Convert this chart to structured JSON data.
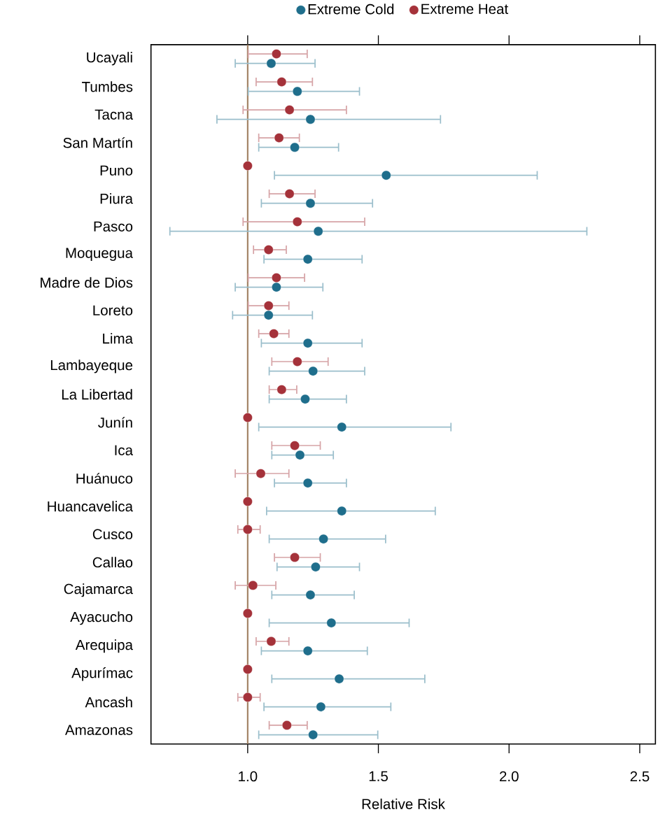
{
  "chart_data": {
    "type": "scatter",
    "orientation": "horizontal",
    "xlabel": "Relative Risk",
    "marker": "circle",
    "legend": "top",
    "categories": [
      "Ucayali",
      "Tumbes",
      "Tacna",
      "San Martín",
      "Puno",
      "Piura",
      "Pasco",
      "Moquegua",
      "Madre de Dios",
      "Loreto",
      "Lima",
      "Lambayeque",
      "La Libertad",
      "Junín",
      "Ica",
      "Huánuco",
      "Huancavelica",
      "Cusco",
      "Callao",
      "Cajamarca",
      "Ayacucho",
      "Arequipa",
      "Apurímac",
      "Ancash",
      "Amazonas"
    ],
    "xlim": [
      0.63,
      2.56
    ],
    "xticks": [
      {
        "value": 1,
        "label": "1.0"
      },
      {
        "value": 1.5,
        "label": "1.5"
      },
      {
        "value": 2,
        "label": "2.0"
      },
      {
        "value": 2.5,
        "label": "2.5"
      }
    ],
    "ref_lines": [
      {
        "axis": "x",
        "value": 1,
        "color": "#a08062"
      }
    ],
    "series": [
      {
        "name": "Extreme Cold",
        "color": "#1f6e8c",
        "values": [
          1.09,
          1.19,
          1.24,
          1.18,
          1.53,
          1.24,
          1.27,
          1.23,
          1.11,
          1.08,
          1.23,
          1.25,
          1.22,
          1.36,
          1.2,
          1.23,
          1.36,
          1.29,
          1.26,
          1.24,
          1.32,
          1.23,
          1.35,
          1.28,
          1.25
        ],
        "errors": [
          [
            0.95,
            1.26
          ],
          [
            1.0,
            1.43
          ],
          [
            0.88,
            1.74
          ],
          [
            1.04,
            1.35
          ],
          [
            1.1,
            2.11
          ],
          [
            1.05,
            1.48
          ],
          [
            0.7,
            2.3
          ],
          [
            1.06,
            1.44
          ],
          [
            0.95,
            1.29
          ],
          [
            0.94,
            1.25
          ],
          [
            1.05,
            1.44
          ],
          [
            1.08,
            1.45
          ],
          [
            1.08,
            1.38
          ],
          [
            1.04,
            1.78
          ],
          [
            1.09,
            1.33
          ],
          [
            1.1,
            1.38
          ],
          [
            1.07,
            1.72
          ],
          [
            1.08,
            1.53
          ],
          [
            1.11,
            1.43
          ],
          [
            1.09,
            1.41
          ],
          [
            1.08,
            1.62
          ],
          [
            1.05,
            1.46
          ],
          [
            1.09,
            1.68
          ],
          [
            1.06,
            1.55
          ],
          [
            1.04,
            1.5
          ]
        ]
      },
      {
        "name": "Extreme Heat",
        "color": "#a5323a",
        "values": [
          1.11,
          1.13,
          1.16,
          1.12,
          1.0,
          1.16,
          1.19,
          1.08,
          1.11,
          1.08,
          1.1,
          1.19,
          1.13,
          1.0,
          1.18,
          1.05,
          1.0,
          1.0,
          1.18,
          1.02,
          1.0,
          1.09,
          1.0,
          1.0,
          1.15
        ],
        "errors": [
          [
            1.0,
            1.23
          ],
          [
            1.03,
            1.25
          ],
          [
            0.98,
            1.38
          ],
          [
            1.04,
            1.2
          ],
          null,
          [
            1.08,
            1.26
          ],
          [
            0.98,
            1.45
          ],
          [
            1.02,
            1.15
          ],
          [
            1.0,
            1.22
          ],
          [
            1.0,
            1.16
          ],
          [
            1.04,
            1.16
          ],
          [
            1.09,
            1.31
          ],
          [
            1.08,
            1.19
          ],
          null,
          [
            1.09,
            1.28
          ],
          [
            0.95,
            1.16
          ],
          null,
          [
            0.96,
            1.05
          ],
          [
            1.1,
            1.28
          ],
          [
            0.95,
            1.11
          ],
          null,
          [
            1.03,
            1.16
          ],
          null,
          [
            0.96,
            1.05
          ],
          [
            1.08,
            1.23
          ]
        ]
      }
    ]
  }
}
